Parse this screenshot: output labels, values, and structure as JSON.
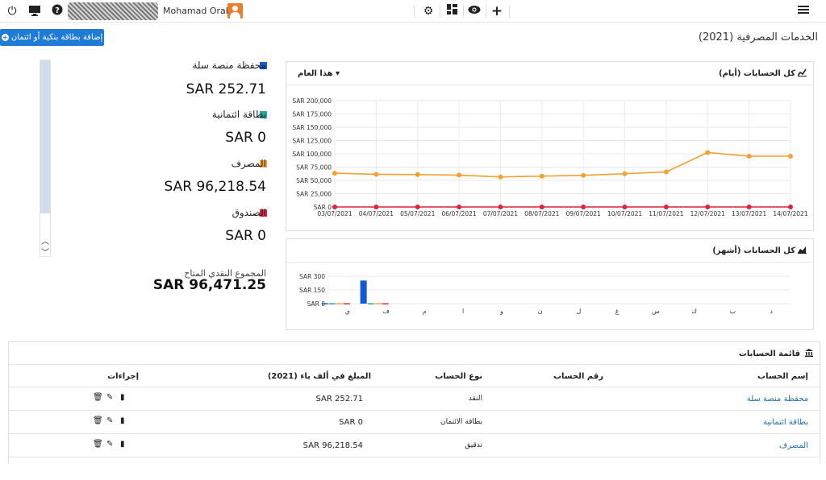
{
  "topbar": {
    "user_name": "Mohamad Orabbi",
    "icons": [
      "power-icon",
      "monitor-icon",
      "help-icon",
      "gear-icon",
      "dashboard-icon",
      "eye-icon",
      "plus-icon",
      "hamburger-icon"
    ]
  },
  "header": {
    "add_button": "إضافة بطاقة بنكية أو ائتمان",
    "page_title": "الخدمات المصرفية (2021)"
  },
  "summary": {
    "items": [
      {
        "label": "محفظة منصة سلة",
        "value": "SAR 252.71",
        "color": "#1558d6"
      },
      {
        "label": "بطاقة ائتمانية",
        "value": "SAR 0",
        "color": "#20a8a0"
      },
      {
        "label": "المصرف",
        "value": "SAR 96,218.54",
        "color": "#f5a030"
      },
      {
        "label": "الصندوق",
        "value": "SAR 0",
        "color": "#e0213f"
      }
    ],
    "total_label": "المجموع النقدي المتاح",
    "total_value": "SAR 96,471.25"
  },
  "daily_panel": {
    "title": "كل الحسابات (أيام)",
    "range": "هذا العام"
  },
  "monthly_panel": {
    "title": "كل الحسابات (أشهر)"
  },
  "chart_data": [
    {
      "type": "line",
      "x": [
        "03/07/2021",
        "04/07/2021",
        "05/07/2021",
        "06/07/2021",
        "07/07/2021",
        "08/07/2021",
        "09/07/2021",
        "10/07/2021",
        "11/07/2021",
        "12/07/2021",
        "13/07/2021",
        "14/07/2021"
      ],
      "series": [
        {
          "values": [
            63500,
            61500,
            61000,
            60000,
            56500,
            58000,
            59500,
            62500,
            66000,
            102500,
            95500,
            95500
          ],
          "color": "#f5a030"
        },
        {
          "values": [
            0,
            0,
            0,
            0,
            0,
            0,
            0,
            0,
            0,
            0,
            0,
            0
          ],
          "color": "#e0213f"
        }
      ],
      "yticks": [
        "SAR 0",
        "SAR 25,000",
        "SAR 50,000",
        "SAR 75,000",
        "SAR 100,000",
        "SAR 125,000",
        "SAR 150,000",
        "SAR 175,000",
        "SAR 200,000"
      ],
      "ylim": [
        0,
        200000
      ]
    },
    {
      "type": "bar",
      "categories": [
        "ي",
        "ف",
        "م",
        "ا",
        "و",
        "ن",
        "ل",
        "غ",
        "س",
        "ك",
        "ب",
        "د"
      ],
      "series": [
        {
          "values": [
            5,
            253,
            0,
            0,
            0,
            0,
            0,
            0,
            0,
            0,
            0,
            0
          ],
          "color": "#1558d6"
        },
        {
          "values": [
            5,
            5,
            0,
            0,
            0,
            0,
            0,
            0,
            0,
            0,
            0,
            0
          ],
          "color": "#20a8a0"
        },
        {
          "values": [
            5,
            5,
            0,
            0,
            0,
            0,
            0,
            0,
            0,
            0,
            0,
            0
          ],
          "color": "#f5a030"
        },
        {
          "values": [
            5,
            5,
            0,
            0,
            0,
            0,
            0,
            0,
            0,
            0,
            0,
            0
          ],
          "color": "#e0213f"
        }
      ],
      "yticks": [
        "SAR 0",
        "SAR 150",
        "SAR 300"
      ],
      "ylim": [
        0,
        300
      ]
    }
  ],
  "table": {
    "title": "قائمة الحسابات",
    "headers": {
      "name": "إسم الحساب",
      "number": "رقم الحساب",
      "type": "نوع الحساب",
      "amount": "المبلغ في ألف ياء (2021)",
      "actions": "إجراءات"
    },
    "rows": [
      {
        "name": "محفظة منصة سلة",
        "number": "",
        "type": "النقد",
        "amount": "SAR 252.71"
      },
      {
        "name": "بطاقة ائتمانية",
        "number": "",
        "type": "بطاقة الائتمان",
        "amount": "SAR 0"
      },
      {
        "name": "المصرف",
        "number": "",
        "type": "تدقيق",
        "amount": "SAR 96,218.54"
      }
    ]
  }
}
